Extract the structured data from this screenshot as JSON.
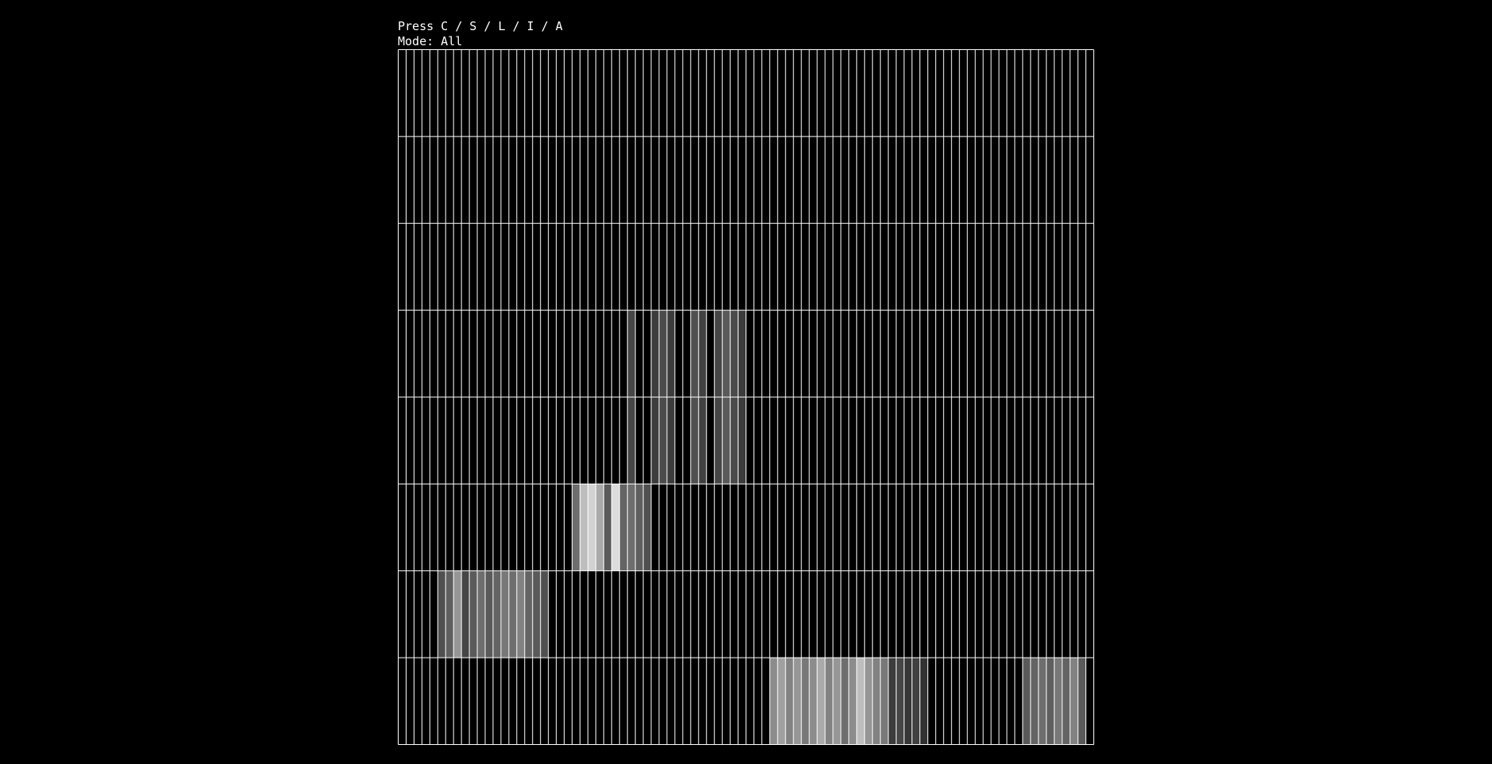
{
  "header": {
    "hint": "Press C / S / L / I / A",
    "mode": "Mode: All"
  },
  "grid": {
    "rows": 8,
    "cols": 88,
    "cells": [
      [
        3,
        29,
        70
      ],
      [
        3,
        32,
        60
      ],
      [
        3,
        33,
        75
      ],
      [
        3,
        34,
        60
      ],
      [
        3,
        37,
        80
      ],
      [
        3,
        38,
        65
      ],
      [
        3,
        40,
        70
      ],
      [
        3,
        41,
        90
      ],
      [
        3,
        42,
        75
      ],
      [
        3,
        43,
        60
      ],
      [
        4,
        29,
        70
      ],
      [
        4,
        32,
        60
      ],
      [
        4,
        33,
        75
      ],
      [
        4,
        34,
        60
      ],
      [
        4,
        37,
        80
      ],
      [
        4,
        38,
        65
      ],
      [
        4,
        40,
        70
      ],
      [
        4,
        41,
        90
      ],
      [
        4,
        42,
        75
      ],
      [
        4,
        43,
        60
      ],
      [
        5,
        22,
        110
      ],
      [
        5,
        23,
        190
      ],
      [
        5,
        24,
        210
      ],
      [
        5,
        25,
        170
      ],
      [
        5,
        26,
        90
      ],
      [
        5,
        27,
        220
      ],
      [
        5,
        28,
        100
      ],
      [
        5,
        29,
        110
      ],
      [
        5,
        30,
        95
      ],
      [
        5,
        31,
        80
      ],
      [
        6,
        5,
        80
      ],
      [
        6,
        6,
        95
      ],
      [
        6,
        7,
        150
      ],
      [
        6,
        8,
        70
      ],
      [
        6,
        9,
        90
      ],
      [
        6,
        10,
        110
      ],
      [
        6,
        11,
        90
      ],
      [
        6,
        12,
        100
      ],
      [
        6,
        13,
        120
      ],
      [
        6,
        14,
        110
      ],
      [
        6,
        15,
        130
      ],
      [
        6,
        16,
        100
      ],
      [
        6,
        17,
        90
      ],
      [
        6,
        18,
        80
      ],
      [
        7,
        47,
        140
      ],
      [
        7,
        48,
        160
      ],
      [
        7,
        49,
        130
      ],
      [
        7,
        50,
        150
      ],
      [
        7,
        51,
        120
      ],
      [
        7,
        52,
        140
      ],
      [
        7,
        53,
        170
      ],
      [
        7,
        54,
        130
      ],
      [
        7,
        55,
        150
      ],
      [
        7,
        56,
        110
      ],
      [
        7,
        57,
        140
      ],
      [
        7,
        58,
        190
      ],
      [
        7,
        59,
        150
      ],
      [
        7,
        60,
        130
      ],
      [
        7,
        61,
        120
      ],
      [
        7,
        62,
        60
      ],
      [
        7,
        63,
        70
      ],
      [
        7,
        64,
        55
      ],
      [
        7,
        65,
        65
      ],
      [
        7,
        66,
        50
      ],
      [
        7,
        79,
        90
      ],
      [
        7,
        80,
        100
      ],
      [
        7,
        81,
        110
      ],
      [
        7,
        82,
        95
      ],
      [
        7,
        83,
        120
      ],
      [
        7,
        84,
        100
      ],
      [
        7,
        85,
        130
      ],
      [
        7,
        86,
        90
      ]
    ]
  }
}
